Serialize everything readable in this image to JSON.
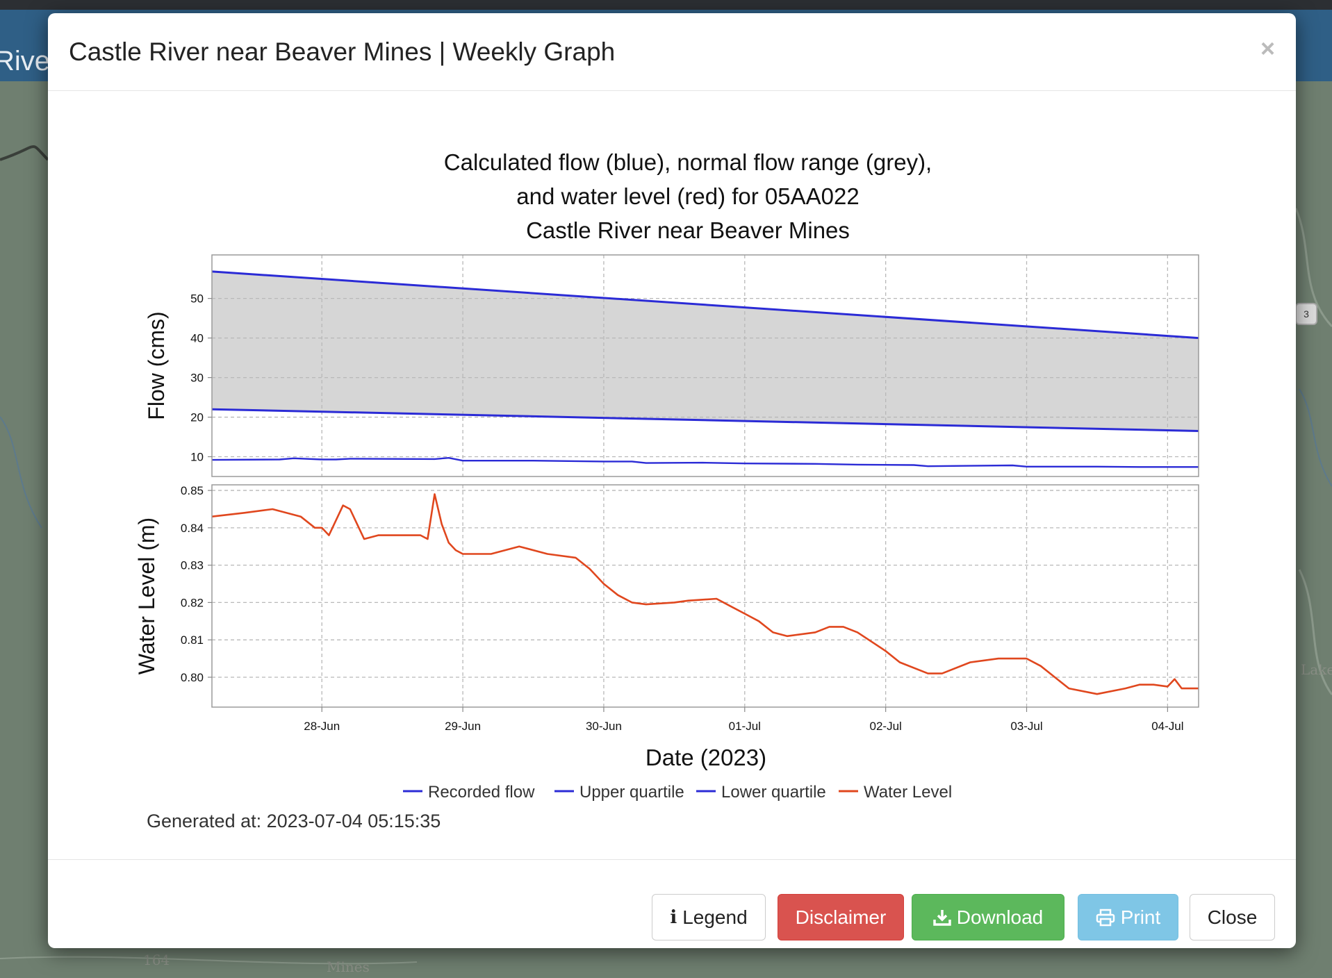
{
  "background": {
    "header_text": "Rive",
    "map_label": "Lake",
    "map_label_2": "Mines",
    "map_label_3": "164",
    "route_shield": "3"
  },
  "modal": {
    "title": "Castle River near Beaver Mines | Weekly Graph",
    "close_symbol": "×"
  },
  "chart_data": {
    "type": "line",
    "title": [
      "Calculated flow (blue), normal flow range (grey),",
      "and water level (red) for 05AA022",
      "Castle River near Beaver Mines"
    ],
    "xlabel": "Date (2023)",
    "x_ticks": [
      "28-Jun",
      "29-Jun",
      "30-Jun",
      "01-Jul",
      "02-Jul",
      "03-Jul",
      "04-Jul"
    ],
    "x_range_days": [
      -0.78,
      6.22
    ],
    "panels": [
      {
        "ylabel": "Flow (cms)",
        "ylim": [
          5,
          61
        ],
        "y_ticks": [
          10,
          20,
          30,
          40,
          50
        ],
        "series": [
          {
            "name": "Upper quartile",
            "color": "#2b2bd6",
            "x": [
              -0.78,
              6.22
            ],
            "y": [
              56.8,
              40.0
            ]
          },
          {
            "name": "Lower quartile",
            "color": "#2b2bd6",
            "x": [
              -0.78,
              6.22
            ],
            "y": [
              22.0,
              16.5
            ]
          },
          {
            "name": "Recorded flow",
            "color": "#2b2bd6",
            "x": [
              -0.78,
              -0.3,
              -0.2,
              0.0,
              0.1,
              0.2,
              0.8,
              0.9,
              1.0,
              1.5,
              2.0,
              2.2,
              2.3,
              2.7,
              3.0,
              3.5,
              3.8,
              4.2,
              4.3,
              4.6,
              4.9,
              5.0,
              5.5,
              5.8,
              6.22
            ],
            "y": [
              9.2,
              9.3,
              9.6,
              9.3,
              9.3,
              9.5,
              9.4,
              9.7,
              9.0,
              9.0,
              8.8,
              8.8,
              8.4,
              8.5,
              8.3,
              8.2,
              8.0,
              7.9,
              7.6,
              7.7,
              7.8,
              7.5,
              7.5,
              7.4,
              7.4
            ]
          }
        ],
        "band": {
          "name": "Normal flow range",
          "color": "#d6d6d6"
        }
      },
      {
        "ylabel": "Water Level (m)",
        "ylim": [
          0.792,
          0.8515
        ],
        "y_ticks": [
          0.8,
          0.81,
          0.82,
          0.83,
          0.84,
          0.85
        ],
        "y_tick_labels": [
          "0.80",
          "0.81",
          "0.82",
          "0.83",
          "0.84",
          "0.85"
        ],
        "series": [
          {
            "name": "Water Level",
            "color": "#e0471e",
            "x": [
              -0.78,
              -0.55,
              -0.35,
              -0.15,
              -0.05,
              0.0,
              0.05,
              0.15,
              0.2,
              0.3,
              0.4,
              0.5,
              0.6,
              0.7,
              0.75,
              0.8,
              0.85,
              0.9,
              0.95,
              1.0,
              1.2,
              1.4,
              1.6,
              1.8,
              1.9,
              2.0,
              2.1,
              2.2,
              2.3,
              2.5,
              2.6,
              2.8,
              2.9,
              3.0,
              3.1,
              3.2,
              3.3,
              3.5,
              3.6,
              3.7,
              3.8,
              4.0,
              4.1,
              4.3,
              4.4,
              4.6,
              4.8,
              5.0,
              5.1,
              5.2,
              5.3,
              5.5,
              5.7,
              5.8,
              5.9,
              6.0,
              6.05,
              6.1,
              6.22
            ],
            "y": [
              0.843,
              0.844,
              0.845,
              0.843,
              0.84,
              0.84,
              0.838,
              0.846,
              0.845,
              0.837,
              0.838,
              0.838,
              0.838,
              0.838,
              0.837,
              0.849,
              0.841,
              0.836,
              0.834,
              0.833,
              0.833,
              0.835,
              0.833,
              0.832,
              0.829,
              0.825,
              0.822,
              0.82,
              0.8195,
              0.82,
              0.8205,
              0.821,
              0.819,
              0.817,
              0.815,
              0.812,
              0.811,
              0.812,
              0.8135,
              0.8135,
              0.812,
              0.807,
              0.804,
              0.801,
              0.801,
              0.804,
              0.805,
              0.805,
              0.803,
              0.8,
              0.797,
              0.7955,
              0.797,
              0.798,
              0.798,
              0.7975,
              0.7995,
              0.797,
              0.797
            ]
          }
        ]
      }
    ],
    "legend": [
      {
        "label": "Recorded flow",
        "color": "#2b2bd6"
      },
      {
        "label": "Upper quartile",
        "color": "#2b2bd6"
      },
      {
        "label": "Lower quartile",
        "color": "#2b2bd6"
      },
      {
        "label": "Water Level",
        "color": "#e0471e"
      }
    ],
    "generated_at": "Generated at: 2023-07-04 05:15:35"
  },
  "footer": {
    "legend_label": "Legend",
    "legend_icon": "i",
    "disclaimer_label": "Disclaimer",
    "download_label": "Download",
    "print_label": "Print",
    "close_label": "Close"
  }
}
